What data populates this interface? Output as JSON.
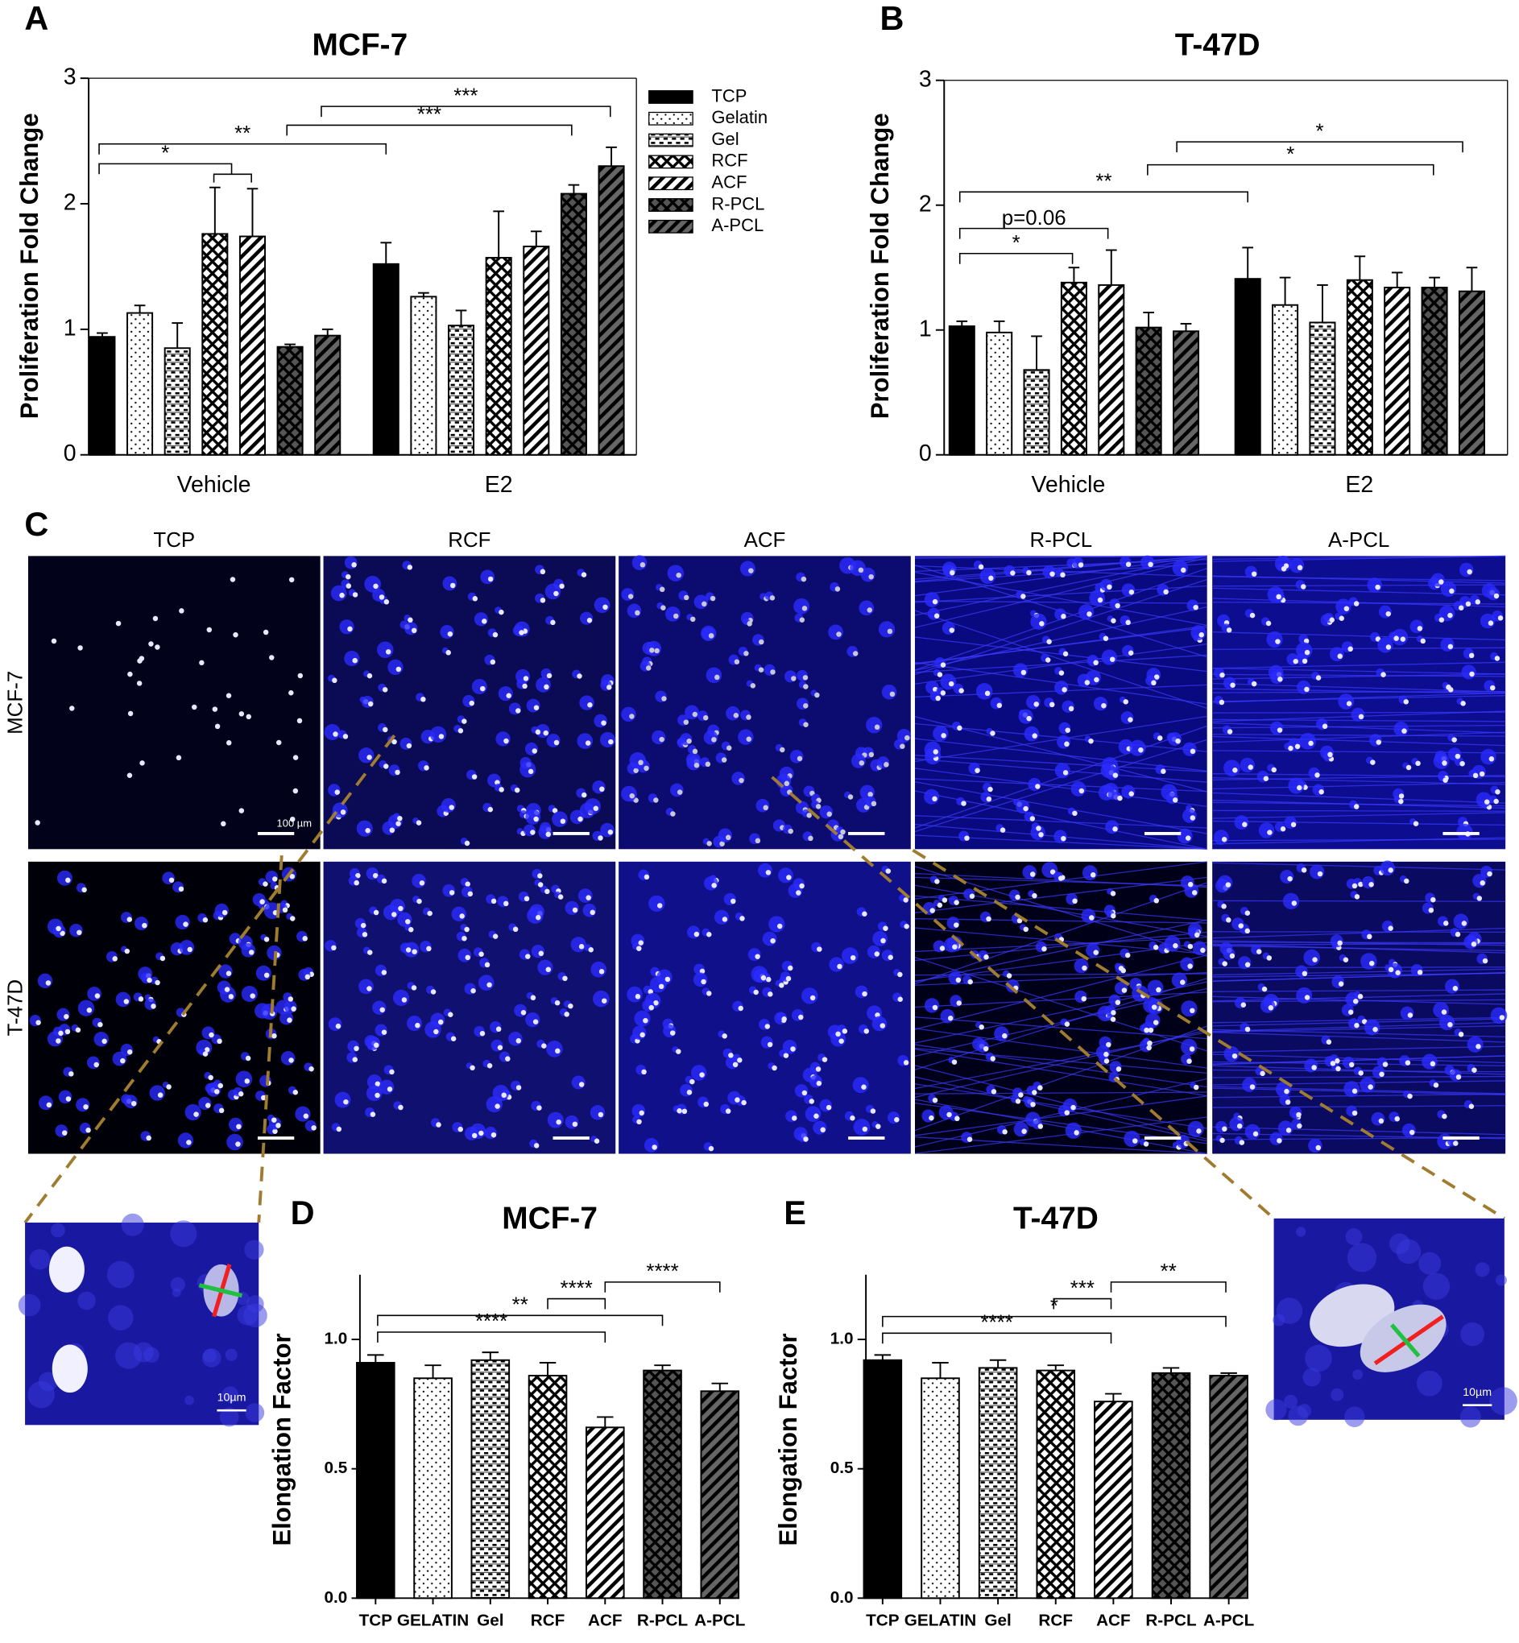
{
  "chart_data": [
    {
      "type": "bar",
      "panel_label": "A",
      "title": "MCF-7",
      "y_label": "Proliferation Fold Change",
      "categories": [
        "Vehicle",
        "E2"
      ],
      "ylim": [
        0,
        3
      ],
      "yticks": [
        0,
        1,
        2,
        3
      ],
      "series": [
        {
          "name": "TCP",
          "color": "#000000",
          "values": [
            0.94,
            1.52
          ],
          "errors": [
            0.03,
            0.17
          ]
        },
        {
          "name": "Gelatin",
          "color": "#ffffff",
          "values": [
            1.13,
            1.26
          ],
          "errors": [
            0.06,
            0.03
          ]
        },
        {
          "name": "Gel",
          "color": "#ffffff",
          "values": [
            0.85,
            1.03
          ],
          "errors": [
            0.2,
            0.12
          ]
        },
        {
          "name": "RCF",
          "color": "#ffffff",
          "values": [
            1.76,
            1.57
          ],
          "errors": [
            0.37,
            0.37
          ]
        },
        {
          "name": "ACF",
          "color": "#ffffff",
          "values": [
            1.74,
            1.66
          ],
          "errors": [
            0.38,
            0.12
          ]
        },
        {
          "name": "R-PCL",
          "color": "#555555",
          "values": [
            0.86,
            2.08
          ],
          "errors": [
            0.02,
            0.07
          ]
        },
        {
          "name": "A-PCL",
          "color": "#666666",
          "values": [
            0.95,
            2.3
          ],
          "errors": [
            0.05,
            0.15
          ]
        }
      ],
      "annotations": [
        "*",
        "**",
        "***",
        "***"
      ]
    },
    {
      "type": "bar",
      "panel_label": "B",
      "title": "T-47D",
      "y_label": "Proliferation Fold Change",
      "categories": [
        "Vehicle",
        "E2"
      ],
      "ylim": [
        0,
        3
      ],
      "yticks": [
        0,
        1,
        2,
        3
      ],
      "series": [
        {
          "name": "TCP",
          "color": "#000000",
          "values": [
            1.03,
            1.41
          ],
          "errors": [
            0.04,
            0.25
          ]
        },
        {
          "name": "Gelatin",
          "color": "#ffffff",
          "values": [
            0.98,
            1.2
          ],
          "errors": [
            0.09,
            0.22
          ]
        },
        {
          "name": "Gel",
          "color": "#ffffff",
          "values": [
            0.68,
            1.06
          ],
          "errors": [
            0.27,
            0.3
          ]
        },
        {
          "name": "RCF",
          "color": "#ffffff",
          "values": [
            1.38,
            1.4
          ],
          "errors": [
            0.12,
            0.19
          ]
        },
        {
          "name": "ACF",
          "color": "#ffffff",
          "values": [
            1.36,
            1.34
          ],
          "errors": [
            0.28,
            0.12
          ]
        },
        {
          "name": "R-PCL",
          "color": "#555555",
          "values": [
            1.02,
            1.34
          ],
          "errors": [
            0.12,
            0.08
          ]
        },
        {
          "name": "A-PCL",
          "color": "#666666",
          "values": [
            0.99,
            1.31
          ],
          "errors": [
            0.06,
            0.19
          ]
        }
      ],
      "annotations": [
        "*",
        "p=0.06",
        "**",
        "*",
        "*"
      ]
    },
    {
      "type": "bar",
      "panel_label": "D",
      "title": "MCF-7",
      "y_label": "Elongation Factor",
      "categories": [
        "TCP",
        "GELATIN",
        "Gel",
        "RCF",
        "ACF",
        "R-PCL",
        "A-PCL"
      ],
      "colors": [
        "#000000",
        "#ffffff",
        "#ffffff",
        "#ffffff",
        "#ffffff",
        "#555555",
        "#666666"
      ],
      "values": [
        0.91,
        0.85,
        0.92,
        0.86,
        0.66,
        0.88,
        0.8
      ],
      "errors": [
        0.03,
        0.05,
        0.03,
        0.05,
        0.04,
        0.02,
        0.03
      ],
      "ylim": [
        0,
        1.25
      ],
      "yticks": [
        {
          "value": 0,
          "label": "0.0"
        },
        0.5,
        {
          "value": 1,
          "label": "1.0"
        }
      ],
      "annotations": [
        "****",
        "**",
        "****",
        "****"
      ]
    },
    {
      "type": "bar",
      "panel_label": "E",
      "title": "T-47D",
      "y_label": "Elongation Factor",
      "categories": [
        "TCP",
        "GELATIN",
        "Gel",
        "RCF",
        "ACF",
        "R-PCL",
        "A-PCL"
      ],
      "colors": [
        "#000000",
        "#ffffff",
        "#ffffff",
        "#ffffff",
        "#ffffff",
        "#555555",
        "#666666"
      ],
      "values": [
        0.92,
        0.85,
        0.89,
        0.88,
        0.76,
        0.87,
        0.86
      ],
      "errors": [
        0.02,
        0.06,
        0.03,
        0.02,
        0.03,
        0.02,
        0.01
      ],
      "ylim": [
        0,
        1.25
      ],
      "yticks": [
        {
          "value": 0,
          "label": "0.0"
        },
        0.5,
        {
          "value": 1,
          "label": "1.0"
        }
      ],
      "annotations": [
        "****",
        "*",
        "***",
        "**"
      ]
    }
  ],
  "microscopy": {
    "panel_label": "C",
    "columns": [
      "TCP",
      "RCF",
      "ACF",
      "R-PCL",
      "A-PCL"
    ],
    "rows": [
      "MCF-7",
      "T-47D"
    ],
    "scale_bar": "100 µm",
    "insets": [
      {
        "scale_bar": "10µm"
      },
      {
        "scale_bar": "10µm"
      }
    ]
  }
}
